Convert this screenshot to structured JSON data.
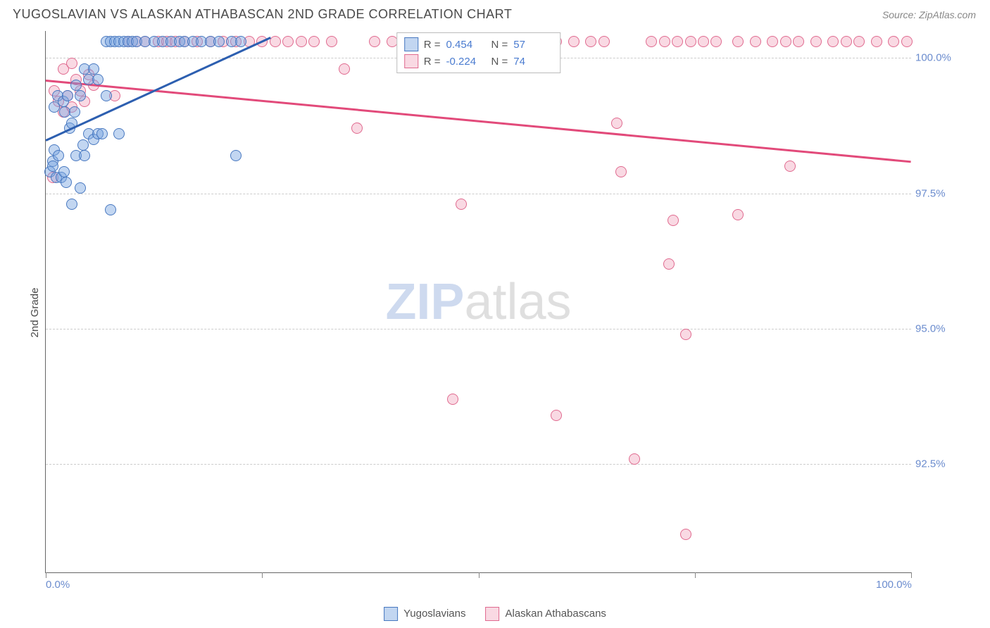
{
  "header": {
    "title": "YUGOSLAVIAN VS ALASKAN ATHABASCAN 2ND GRADE CORRELATION CHART",
    "source": "Source: ZipAtlas.com"
  },
  "watermark": {
    "prefix": "ZIP",
    "suffix": "atlas"
  },
  "axes": {
    "ylabel": "2nd Grade",
    "xlim": [
      0,
      100
    ],
    "ylim": [
      90.5,
      100.5
    ],
    "yticks": [
      {
        "v": 100.0,
        "label": "100.0%"
      },
      {
        "v": 97.5,
        "label": "97.5%"
      },
      {
        "v": 95.0,
        "label": "95.0%"
      },
      {
        "v": 92.5,
        "label": "92.5%"
      }
    ],
    "xticks_major": [
      0,
      25,
      50,
      75,
      100
    ],
    "xlabels": [
      {
        "v": 0,
        "label": "0.0%",
        "anchor": "left"
      },
      {
        "v": 100,
        "label": "100.0%",
        "anchor": "right"
      }
    ],
    "grid_color": "#cccccc",
    "axis_color": "#666666",
    "tick_label_color": "#6b8cce"
  },
  "series": {
    "yugoslavians": {
      "label": "Yugoslavians",
      "color_fill": "rgba(120,165,225,0.45)",
      "color_stroke": "#4878c0",
      "reg_color": "#2d5fb0",
      "R": "0.454",
      "N": "57",
      "regression": {
        "x1": 0,
        "y1": 98.5,
        "x2": 26,
        "y2": 100.4
      },
      "points": [
        [
          0.5,
          97.9
        ],
        [
          0.8,
          98.1
        ],
        [
          1.0,
          98.3
        ],
        [
          1.2,
          97.8
        ],
        [
          1.5,
          98.2
        ],
        [
          1.0,
          99.1
        ],
        [
          1.4,
          99.3
        ],
        [
          2.0,
          99.2
        ],
        [
          2.2,
          99.0
        ],
        [
          2.5,
          99.3
        ],
        [
          2.8,
          98.7
        ],
        [
          3.0,
          98.8
        ],
        [
          3.3,
          99.0
        ],
        [
          3.5,
          98.2
        ],
        [
          1.8,
          97.8
        ],
        [
          2.1,
          97.9
        ],
        [
          2.4,
          97.7
        ],
        [
          4.0,
          99.3
        ],
        [
          4.3,
          98.4
        ],
        [
          4.5,
          98.2
        ],
        [
          5.0,
          98.6
        ],
        [
          5.5,
          98.5
        ],
        [
          6.0,
          98.6
        ],
        [
          6.5,
          98.6
        ],
        [
          0.8,
          98.0
        ],
        [
          3.5,
          99.5
        ],
        [
          3.0,
          97.3
        ],
        [
          4.0,
          97.6
        ],
        [
          7.0,
          100.3
        ],
        [
          7.5,
          100.3
        ],
        [
          8.0,
          100.3
        ],
        [
          8.5,
          100.3
        ],
        [
          9.0,
          100.3
        ],
        [
          9.5,
          100.3
        ],
        [
          10.0,
          100.3
        ],
        [
          10.5,
          100.3
        ],
        [
          11.5,
          100.3
        ],
        [
          12.5,
          100.3
        ],
        [
          13.5,
          100.3
        ],
        [
          14.5,
          100.3
        ],
        [
          15.5,
          100.3
        ],
        [
          16.0,
          100.3
        ],
        [
          17.0,
          100.3
        ],
        [
          18.0,
          100.3
        ],
        [
          19.0,
          100.3
        ],
        [
          20.0,
          100.3
        ],
        [
          21.5,
          100.3
        ],
        [
          22.5,
          100.3
        ],
        [
          4.5,
          99.8
        ],
        [
          5.0,
          99.6
        ],
        [
          5.5,
          99.8
        ],
        [
          6.0,
          99.6
        ],
        [
          7.0,
          99.3
        ],
        [
          8.5,
          98.6
        ],
        [
          22.0,
          98.2
        ],
        [
          7.5,
          97.2
        ]
      ]
    },
    "alaskan": {
      "label": "Alaskan Athabascans",
      "color_fill": "rgba(240,160,185,0.40)",
      "color_stroke": "#e06a8f",
      "reg_color": "#e24a7a",
      "R": "-0.224",
      "N": "74",
      "regression": {
        "x1": 0,
        "y1": 99.6,
        "x2": 100,
        "y2": 98.1
      },
      "points": [
        [
          1.0,
          99.4
        ],
        [
          1.5,
          99.2
        ],
        [
          2.0,
          99.0
        ],
        [
          2.5,
          99.3
        ],
        [
          3.0,
          99.1
        ],
        [
          3.5,
          99.6
        ],
        [
          4.0,
          99.4
        ],
        [
          4.5,
          99.2
        ],
        [
          5.0,
          99.7
        ],
        [
          5.5,
          99.5
        ],
        [
          0.8,
          97.8
        ],
        [
          2.0,
          99.8
        ],
        [
          3.0,
          99.9
        ],
        [
          8.0,
          99.3
        ],
        [
          9.5,
          100.3
        ],
        [
          10.5,
          100.3
        ],
        [
          11.5,
          100.3
        ],
        [
          13.0,
          100.3
        ],
        [
          14.0,
          100.3
        ],
        [
          15.0,
          100.3
        ],
        [
          16.0,
          100.3
        ],
        [
          17.5,
          100.3
        ],
        [
          19.0,
          100.3
        ],
        [
          20.5,
          100.3
        ],
        [
          22.0,
          100.3
        ],
        [
          23.5,
          100.3
        ],
        [
          25.0,
          100.3
        ],
        [
          26.5,
          100.3
        ],
        [
          28.0,
          100.3
        ],
        [
          29.5,
          100.3
        ],
        [
          31.0,
          100.3
        ],
        [
          33.0,
          100.3
        ],
        [
          34.5,
          99.8
        ],
        [
          38.0,
          100.3
        ],
        [
          40.0,
          100.3
        ],
        [
          36.0,
          98.7
        ],
        [
          48.0,
          97.3
        ],
        [
          50.0,
          100.3
        ],
        [
          54.0,
          100.3
        ],
        [
          56.5,
          100.3
        ],
        [
          59.0,
          100.3
        ],
        [
          61.0,
          100.3
        ],
        [
          63.0,
          100.3
        ],
        [
          64.5,
          100.3
        ],
        [
          47.0,
          93.7
        ],
        [
          59.0,
          93.4
        ],
        [
          66.0,
          98.8
        ],
        [
          66.5,
          97.9
        ],
        [
          70.0,
          100.3
        ],
        [
          71.5,
          100.3
        ],
        [
          73.0,
          100.3
        ],
        [
          74.5,
          100.3
        ],
        [
          76.0,
          100.3
        ],
        [
          77.5,
          100.3
        ],
        [
          72.0,
          96.2
        ],
        [
          68.0,
          92.6
        ],
        [
          80.0,
          100.3
        ],
        [
          82.0,
          100.3
        ],
        [
          84.0,
          100.3
        ],
        [
          85.5,
          100.3
        ],
        [
          87.0,
          100.3
        ],
        [
          89.0,
          100.3
        ],
        [
          91.0,
          100.3
        ],
        [
          92.5,
          100.3
        ],
        [
          94.0,
          100.3
        ],
        [
          96.0,
          100.3
        ],
        [
          98.0,
          100.3
        ],
        [
          99.5,
          100.3
        ],
        [
          72.5,
          97.0
        ],
        [
          74.0,
          94.9
        ],
        [
          80.0,
          97.1
        ],
        [
          86.0,
          98.0
        ],
        [
          74.0,
          91.2
        ]
      ]
    }
  },
  "legend_top_labels": {
    "R": "R =",
    "N": "N ="
  }
}
